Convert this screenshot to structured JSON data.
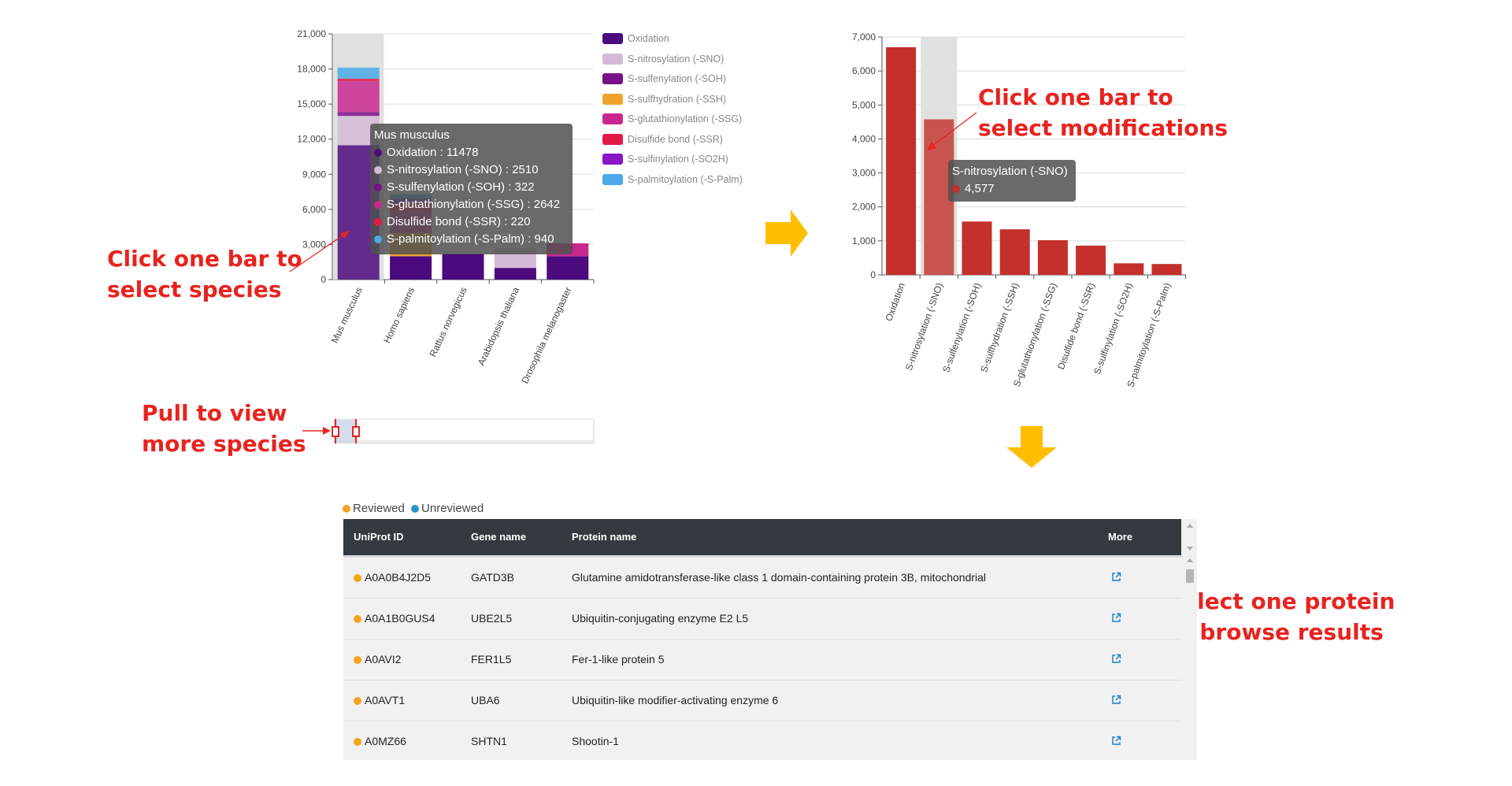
{
  "species_chart": {
    "type": "bar",
    "stacked": true,
    "y_ticks": [
      "21,000",
      "18,000",
      "15,000",
      "12,000",
      "9,000",
      "6,000",
      "3,000",
      "0"
    ],
    "ylim": [
      0,
      21000
    ],
    "categories": [
      "Mus musculus",
      "Homo sapiens",
      "Rattus norvegicus",
      "Arabidopsis thaliana",
      "Drosophila melanogaster"
    ],
    "series": [
      {
        "name": "Oxidation",
        "color": "#4b0a7d",
        "values": [
          11478,
          2000,
          2200,
          1000,
          2000
        ]
      },
      {
        "name": "S-nitrosylation (-SNO)",
        "color": "#d4bad6",
        "values": [
          2510,
          0,
          0,
          1700,
          0
        ]
      },
      {
        "name": "S-sulfenylation (-SOH)",
        "color": "#7a0f8a",
        "values": [
          322,
          0,
          0,
          0,
          0
        ]
      },
      {
        "name": "S-sulfhydration (-SSH)",
        "color": "#f0a12b",
        "values": [
          0,
          2000,
          0,
          0,
          0
        ]
      },
      {
        "name": "S-glutathionylation (-SSG)",
        "color": "#c8288e",
        "values": [
          2642,
          1800,
          0,
          0,
          1100
        ]
      },
      {
        "name": "Disulfide bond (-SSR)",
        "color": "#e31a48",
        "values": [
          220,
          700,
          0,
          0,
          0
        ]
      },
      {
        "name": "S-sulfinylation (-SO2H)",
        "color": "#8a14c8",
        "values": [
          0,
          400,
          0,
          0,
          0
        ]
      },
      {
        "name": "S-palmitoylation (-S-Palm)",
        "color": "#4aa9e8",
        "values": [
          940,
          400,
          0,
          0,
          0
        ]
      }
    ],
    "highlight_category": "Mus musculus",
    "tooltip": {
      "title": "Mus musculus",
      "rows": [
        {
          "label": "Oxidation : 11478",
          "color": "#4b0a7d"
        },
        {
          "label": "S-nitrosylation (-SNO) : 2510",
          "color": "#d4bad6"
        },
        {
          "label": "S-sulfenylation (-SOH) : 322",
          "color": "#7a0f8a"
        },
        {
          "label": "S-glutathionylation (-SSG) : 2642",
          "color": "#c8288e"
        },
        {
          "label": "Disulfide bond (-SSR) : 220",
          "color": "#e31a48"
        },
        {
          "label": "S-palmitoylation (-S-Palm) : 940",
          "color": "#4aa9e8"
        }
      ]
    }
  },
  "modification_chart": {
    "type": "bar",
    "y_ticks": [
      "7,000",
      "6,000",
      "5,000",
      "4,000",
      "3,000",
      "2,000",
      "1,000",
      "0"
    ],
    "ylim": [
      0,
      7000
    ],
    "categories": [
      "Oxidation",
      "S-nitrosylation (-SNO)",
      "S-sulfenylation (-SOH)",
      "S-sulfhydration (-SSH)",
      "S-glutathionylation (-SSG)",
      "Disulfide bond (-SSR)",
      "S-sulfinylation (-SO2H)",
      "S-palmitoylation (-S-Palm)"
    ],
    "values": [
      6700,
      4577,
      1570,
      1340,
      1020,
      860,
      340,
      320
    ],
    "bar_color": "#c4302b",
    "highlight_color": "#c8544f",
    "highlight_category": "S-nitrosylation (-SNO)",
    "tooltip": {
      "title": "S-nitrosylation (-SNO)",
      "value": "4,577"
    }
  },
  "annotations": {
    "species": [
      "Click one bar to",
      "select species"
    ],
    "modifications": [
      "Click one bar to",
      "select modifications"
    ],
    "pull": [
      "Pull to view",
      "more species"
    ],
    "protein": [
      "Select one protein",
      "to browse results"
    ]
  },
  "colors": {
    "annotation": "#e8231f",
    "flow_arrow": "#ffbf00",
    "reviewed": "#f4a31c",
    "unreviewed": "#2b95c7",
    "header_bg": "#343a40"
  },
  "status_legend": {
    "reviewed": "Reviewed",
    "unreviewed": "Unreviewed"
  },
  "table": {
    "headers": {
      "uniprot": "UniProt ID",
      "gene": "Gene name",
      "protein": "Protein name",
      "more": "More"
    },
    "rows": [
      {
        "uniprot": "A0A0B4J2D5",
        "gene": "GATD3B",
        "protein": "Glutamine amidotransferase-like class 1 domain-containing protein 3B, mitochondrial",
        "status": "reviewed"
      },
      {
        "uniprot": "A0A1B0GUS4",
        "gene": "UBE2L5",
        "protein": "Ubiquitin-conjugating enzyme E2 L5",
        "status": "reviewed"
      },
      {
        "uniprot": "A0AVI2",
        "gene": "FER1L5",
        "protein": "Fer-1-like protein 5",
        "status": "reviewed"
      },
      {
        "uniprot": "A0AVT1",
        "gene": "UBA6",
        "protein": "Ubiquitin-like modifier-activating enzyme 6",
        "status": "reviewed"
      },
      {
        "uniprot": "A0MZ66",
        "gene": "SHTN1",
        "protein": "Shootin-1",
        "status": "reviewed"
      }
    ],
    "more_icon": "external-link-icon"
  }
}
